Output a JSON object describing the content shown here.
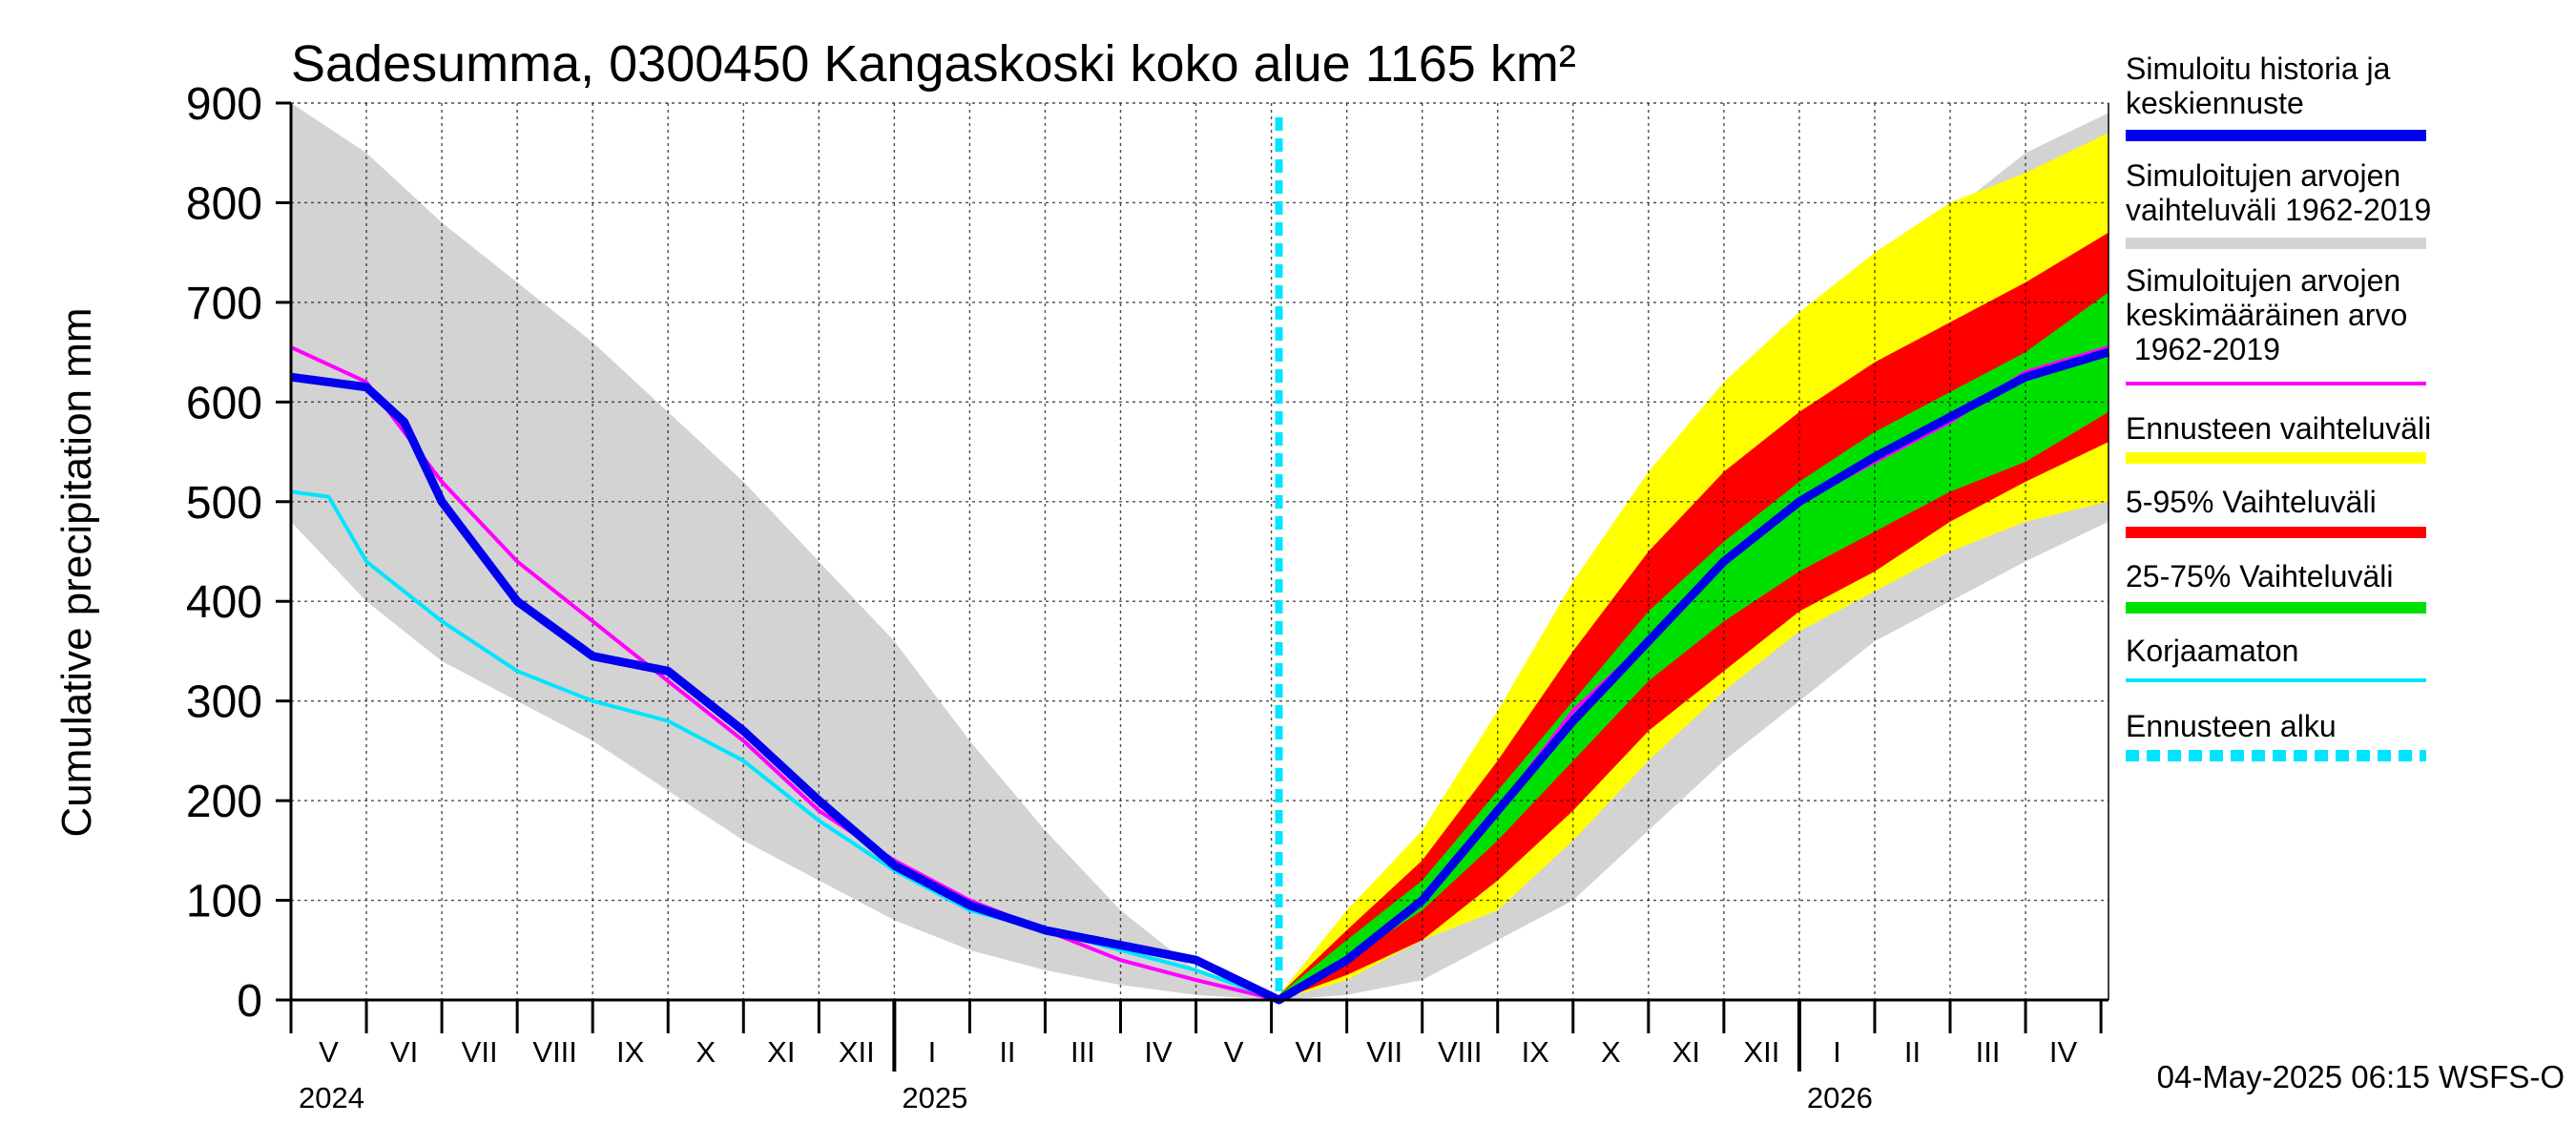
{
  "chart_data": {
    "type": "area",
    "title": "Sadesumma, 0300450 Kangaskoski koko alue 1165 km²",
    "ylabel": "Cumulative precipitation   mm",
    "ylim": [
      0,
      900
    ],
    "yticks": [
      0,
      100,
      200,
      300,
      400,
      500,
      600,
      700,
      800,
      900
    ],
    "x_unit": "months since 2024-04-01",
    "xlim": [
      0,
      24.1
    ],
    "forecast_start_x": 13.1,
    "months": [
      "V",
      "VI",
      "VII",
      "VIII",
      "IX",
      "X",
      "XI",
      "XII",
      "I",
      "II",
      "III",
      "IV",
      "V",
      "VI",
      "VII",
      "VIII",
      "IX",
      "X",
      "XI",
      "XII",
      "I",
      "II",
      "III",
      "IV"
    ],
    "years": [
      {
        "label": "2024",
        "x": 0
      },
      {
        "label": "2025",
        "x": 8
      },
      {
        "label": "2026",
        "x": 20
      }
    ],
    "series": [
      {
        "name": "hist_range",
        "kind": "band",
        "color": "#d3d3d3",
        "x": [
          0,
          1,
          2,
          3,
          4,
          5,
          6,
          7,
          8,
          9,
          10,
          11,
          12,
          13.1,
          14,
          15,
          16,
          17,
          18,
          19,
          20,
          21,
          22,
          23,
          24.1
        ],
        "lower": [
          480,
          400,
          340,
          300,
          260,
          210,
          160,
          120,
          80,
          50,
          30,
          15,
          5,
          0,
          5,
          20,
          60,
          100,
          170,
          240,
          300,
          360,
          400,
          440,
          480
        ],
        "upper": [
          900,
          850,
          780,
          720,
          660,
          590,
          520,
          440,
          360,
          260,
          170,
          90,
          30,
          5,
          60,
          130,
          210,
          330,
          440,
          540,
          640,
          720,
          790,
          850,
          890
        ]
      },
      {
        "name": "Ennusteen vaihteluväli",
        "kind": "band",
        "color": "#ffff00",
        "x": [
          13.1,
          14,
          15,
          16,
          17,
          18,
          19,
          20,
          21,
          22,
          23,
          24.1
        ],
        "lower": [
          0,
          20,
          60,
          90,
          160,
          240,
          310,
          370,
          410,
          450,
          480,
          500
        ],
        "upper": [
          5,
          90,
          170,
          290,
          420,
          530,
          620,
          690,
          750,
          800,
          830,
          870
        ]
      },
      {
        "name": "5-95% Vaihteluväli",
        "kind": "band",
        "color": "#ff0000",
        "x": [
          13.1,
          14,
          15,
          16,
          17,
          18,
          19,
          20,
          21,
          22,
          23,
          24.1
        ],
        "lower": [
          0,
          25,
          60,
          120,
          190,
          270,
          330,
          390,
          430,
          480,
          520,
          560
        ],
        "upper": [
          5,
          70,
          140,
          240,
          350,
          450,
          530,
          590,
          640,
          680,
          720,
          770
        ]
      },
      {
        "name": "25-75% Vaihteluväli",
        "kind": "band",
        "color": "#00e000",
        "x": [
          13.1,
          14,
          15,
          16,
          17,
          18,
          19,
          20,
          21,
          22,
          23,
          24.1
        ],
        "lower": [
          0,
          40,
          90,
          160,
          240,
          320,
          380,
          430,
          470,
          510,
          540,
          590
        ],
        "upper": [
          5,
          60,
          120,
          210,
          300,
          390,
          460,
          520,
          570,
          610,
          650,
          710
        ]
      },
      {
        "name": "Simuloitujen arvojen keskimääräinen arvo 1962-2019",
        "kind": "line",
        "color": "#ff00ff",
        "x": [
          0,
          1,
          2,
          3,
          4,
          5,
          6,
          7,
          8,
          9,
          10,
          11,
          12,
          13.1,
          14,
          15,
          16,
          17,
          18,
          19,
          20,
          21,
          22,
          23,
          24.1
        ],
        "y": [
          655,
          620,
          520,
          440,
          380,
          320,
          260,
          190,
          140,
          100,
          70,
          40,
          20,
          0,
          40,
          100,
          190,
          290,
          360,
          440,
          500,
          540,
          580,
          630,
          655
        ]
      },
      {
        "name": "Korjaamaton",
        "kind": "line",
        "color": "#00e5ff",
        "x": [
          0,
          0.5,
          1,
          2,
          3,
          4,
          5,
          6,
          7,
          8,
          9,
          10,
          11,
          12,
          13.1
        ],
        "y": [
          510,
          505,
          440,
          380,
          330,
          300,
          280,
          240,
          180,
          130,
          90,
          70,
          50,
          30,
          0
        ]
      },
      {
        "name": "Simuloitu historia ja keskiennuste",
        "kind": "line",
        "color": "#0000ee",
        "x": [
          0,
          0.5,
          1,
          1.5,
          2,
          3,
          4,
          5,
          6,
          7,
          8,
          9,
          10,
          11,
          12,
          13.1,
          14,
          15,
          16,
          17,
          18,
          19,
          20,
          21,
          22,
          23,
          24.1
        ],
        "y": [
          625,
          620,
          615,
          580,
          500,
          400,
          345,
          330,
          270,
          200,
          135,
          95,
          70,
          55,
          40,
          0,
          40,
          100,
          190,
          280,
          360,
          440,
          500,
          545,
          585,
          625,
          650
        ]
      }
    ],
    "legend": [
      {
        "label": "Simuloitu historia ja keskiennuste",
        "color": "#0000ee",
        "style": "solid",
        "thick": true
      },
      {
        "label": "Simuloitujen arvojen vaihteluväli 1962-2019",
        "color": "#d3d3d3",
        "style": "solid",
        "thick": true
      },
      {
        "label": "Simuloitujen arvojen keskimääräinen arvo   1962-2019",
        "color": "#ff00ff",
        "style": "solid",
        "thick": false
      },
      {
        "label": "Ennusteen vaihteluväli",
        "color": "#ffff00",
        "style": "solid",
        "thick": true
      },
      {
        "label": "5-95% Vaihteluväli",
        "color": "#ff0000",
        "style": "solid",
        "thick": true
      },
      {
        "label": "25-75% Vaihteluväli",
        "color": "#00e000",
        "style": "solid",
        "thick": true
      },
      {
        "label": "Korjaamaton",
        "color": "#00e5ff",
        "style": "solid",
        "thick": false
      },
      {
        "label": "Ennusteen alku",
        "color": "#00e5ff",
        "style": "dashed",
        "thick": true
      }
    ],
    "footer": "04-May-2025 06:15 WSFS-O"
  }
}
